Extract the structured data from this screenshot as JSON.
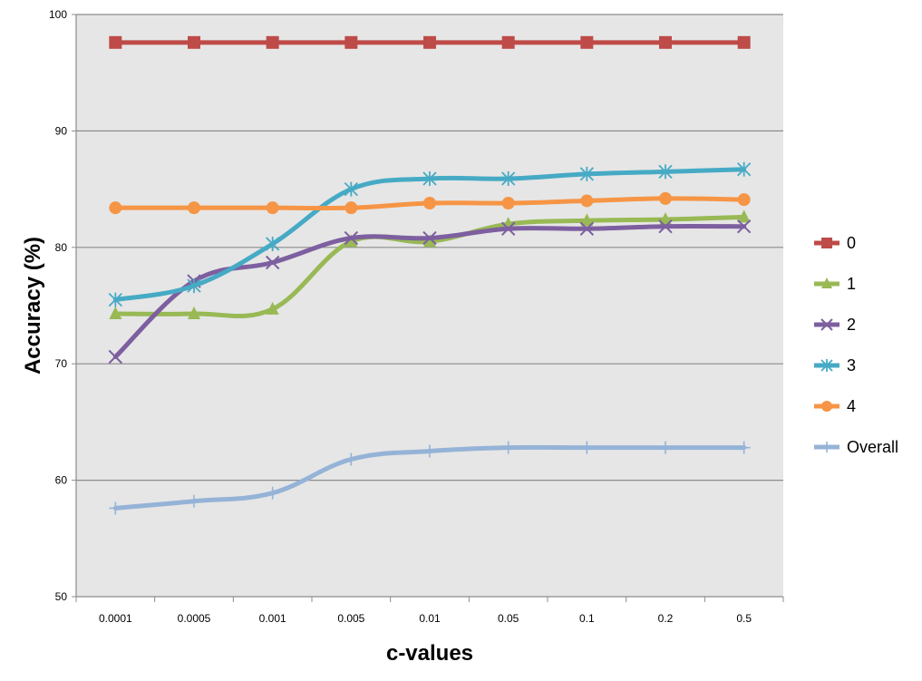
{
  "chart_data": {
    "type": "line",
    "xlabel": "c-values",
    "ylabel": "Accuracy (%)",
    "categories": [
      "0.0001",
      "0.0005",
      "0.001",
      "0.005",
      "0.01",
      "0.05",
      "0.1",
      "0.2",
      "0.5"
    ],
    "ylim": [
      50,
      100
    ],
    "yticks": [
      50,
      60,
      70,
      80,
      90,
      100
    ],
    "grid": true,
    "legend_position": "right",
    "series": [
      {
        "name": "0",
        "color": "#BE4B48",
        "marker": "square",
        "values": [
          97.6,
          97.6,
          97.6,
          97.6,
          97.6,
          97.6,
          97.6,
          97.6,
          97.6
        ]
      },
      {
        "name": "1",
        "color": "#98B954",
        "marker": "triangle",
        "values": [
          74.3,
          74.3,
          74.7,
          80.5,
          80.5,
          82.0,
          82.3,
          82.4,
          82.6
        ]
      },
      {
        "name": "2",
        "color": "#7D5FA0",
        "marker": "x",
        "values": [
          70.6,
          77.1,
          78.7,
          80.8,
          80.8,
          81.6,
          81.6,
          81.8,
          81.8
        ]
      },
      {
        "name": "3",
        "color": "#46AAC5",
        "marker": "star",
        "values": [
          75.5,
          76.7,
          80.3,
          85.0,
          85.9,
          85.9,
          86.3,
          86.5,
          86.7
        ]
      },
      {
        "name": "4",
        "color": "#F69545",
        "marker": "circle",
        "values": [
          83.4,
          83.4,
          83.4,
          83.4,
          83.8,
          83.8,
          84.0,
          84.2,
          84.1
        ]
      },
      {
        "name": "Overall",
        "color": "#95B3D7",
        "marker": "plus",
        "values": [
          57.6,
          58.2,
          58.9,
          61.8,
          62.5,
          62.8,
          62.8,
          62.8,
          62.8
        ]
      }
    ]
  }
}
